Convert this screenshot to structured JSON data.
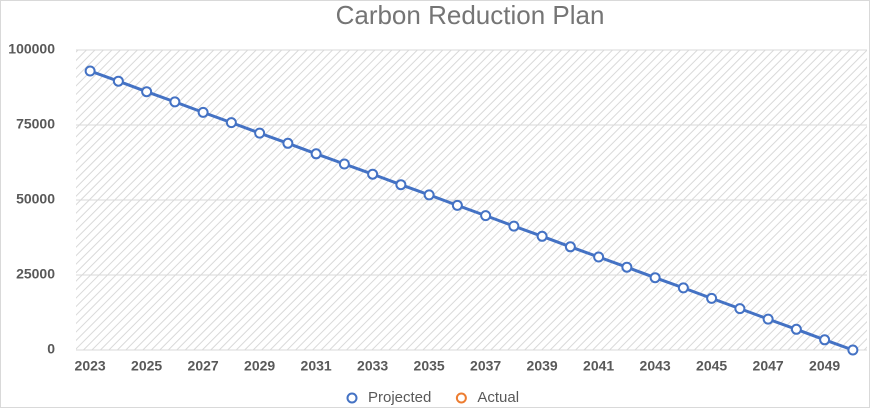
{
  "chart_data": {
    "type": "line",
    "title": "Carbon Reduction Plan",
    "categories": [
      "2023",
      null,
      "2025",
      null,
      "2027",
      null,
      "2029",
      null,
      "2031",
      null,
      "2033",
      null,
      "2035",
      null,
      "2037",
      null,
      "2039",
      null,
      "2041",
      null,
      "2043",
      null,
      "2045",
      null,
      "2047",
      null,
      "2049",
      null
    ],
    "series": [
      {
        "name": "Projected",
        "color": "#4472c4",
        "values": [
          93000,
          89600,
          86100,
          82700,
          79200,
          75800,
          72300,
          68900,
          65400,
          62000,
          58600,
          55100,
          51700,
          48200,
          44800,
          41300,
          37900,
          34400,
          31000,
          27600,
          24100,
          20700,
          17200,
          13800,
          10300,
          6900,
          3400,
          0
        ]
      },
      {
        "name": "Actual",
        "color": "#ed7d31",
        "values": [
          null,
          null,
          null,
          null,
          null,
          null,
          null,
          null,
          null,
          null,
          null,
          null,
          null,
          null,
          null,
          null,
          null,
          null,
          null,
          null,
          null,
          null,
          null,
          null,
          null,
          null,
          null,
          null
        ]
      }
    ],
    "ylim": [
      0,
      100000
    ],
    "yticks": [
      0,
      25000,
      50000,
      75000,
      100000
    ],
    "grid": true,
    "legend": "bottom"
  }
}
